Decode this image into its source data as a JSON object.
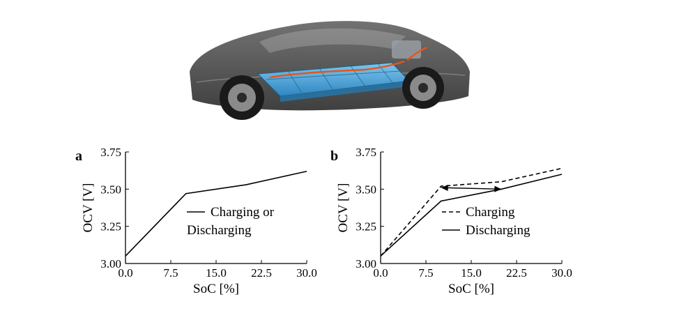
{
  "figure": {
    "illustration": "car-chassis-with-battery-pack-icon"
  },
  "chart_data": [
    {
      "panel": "a",
      "type": "line",
      "xlabel": "SoC [%]",
      "ylabel": "OCV [V]",
      "xlim": [
        0,
        30
      ],
      "ylim": [
        3.0,
        3.75
      ],
      "xticks": [
        "0.0",
        "7.5",
        "15.0",
        "22.5",
        "30.0"
      ],
      "yticks": [
        "3.00",
        "3.25",
        "3.50",
        "3.75"
      ],
      "legend_position": "center-right",
      "legend_lines": [
        "Charging or",
        "Discharging"
      ],
      "series": [
        {
          "style": "solid",
          "x": [
            0,
            10,
            20,
            30
          ],
          "y": [
            3.05,
            3.47,
            3.53,
            3.62
          ]
        }
      ]
    },
    {
      "panel": "b",
      "type": "line",
      "xlabel": "SoC [%]",
      "ylabel": "OCV [V]",
      "xlim": [
        0,
        30
      ],
      "ylim": [
        3.0,
        3.75
      ],
      "xticks": [
        "0.0",
        "7.5",
        "15.0",
        "22.5",
        "30.0"
      ],
      "yticks": [
        "3.00",
        "3.25",
        "3.50",
        "3.75"
      ],
      "legend_position": "center-right",
      "series": [
        {
          "name": "Charging",
          "style": "dashed",
          "x": [
            0,
            10,
            20,
            30
          ],
          "y": [
            3.05,
            3.52,
            3.55,
            3.64
          ]
        },
        {
          "name": "Discharging",
          "style": "solid",
          "x": [
            0,
            10,
            20,
            30
          ],
          "y": [
            3.05,
            3.42,
            3.5,
            3.6
          ]
        }
      ],
      "annotation": {
        "type": "double-arrow",
        "from": [
          10,
          3.51
        ],
        "to": [
          20,
          3.5
        ]
      }
    }
  ]
}
